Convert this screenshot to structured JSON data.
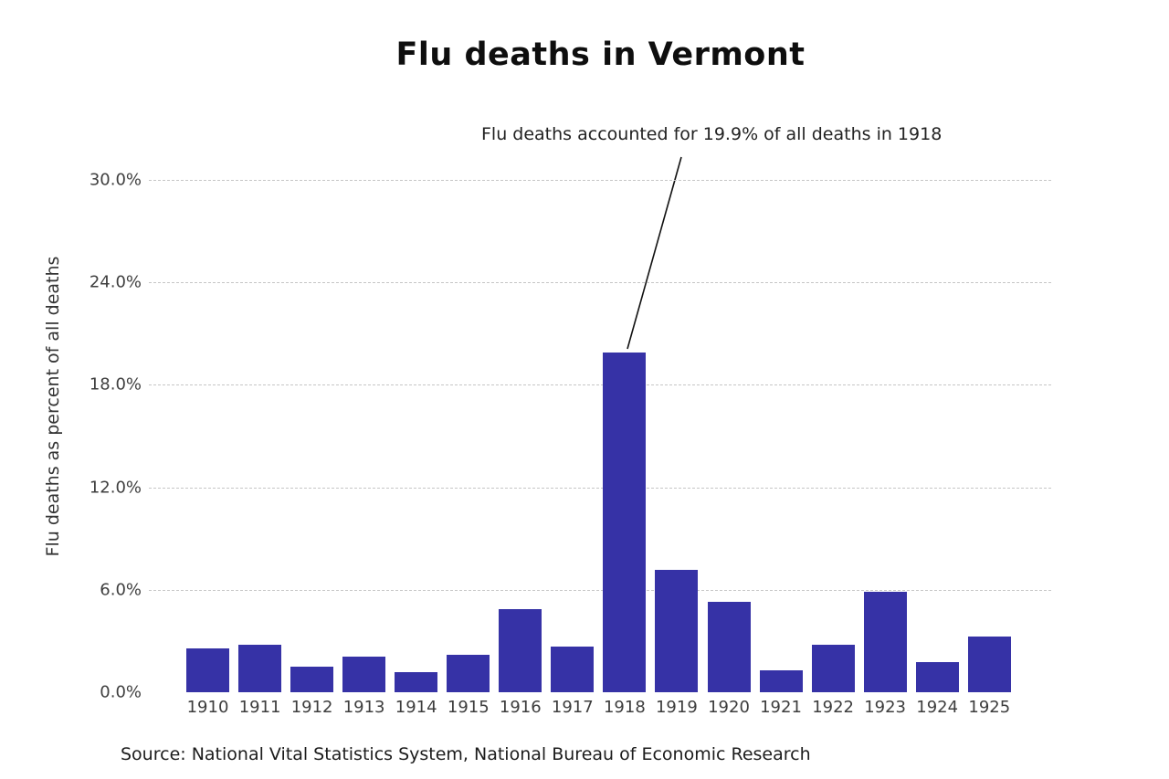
{
  "chart_data": {
    "type": "bar",
    "title": "Flu deaths in Vermont",
    "xlabel": "",
    "ylabel": "Flu deaths as percent of all deaths",
    "categories": [
      "1910",
      "1911",
      "1912",
      "1913",
      "1914",
      "1915",
      "1916",
      "1917",
      "1918",
      "1919",
      "1920",
      "1921",
      "1922",
      "1923",
      "1924",
      "1925"
    ],
    "values": [
      2.6,
      2.8,
      1.5,
      2.1,
      1.2,
      2.2,
      4.9,
      2.7,
      19.9,
      7.2,
      5.3,
      1.3,
      2.8,
      5.9,
      1.8,
      3.3
    ],
    "ylim": [
      0,
      31.5
    ],
    "yticks": {
      "labels": [
        "0.0%",
        "6.0%",
        "12.0%",
        "18.0%",
        "24.0%",
        "30.0%"
      ],
      "values": [
        0,
        6,
        12,
        18,
        24,
        30
      ]
    },
    "grid": "horizontal-dashed",
    "legend": "none",
    "annotation": {
      "text": "Flu deaths accounted for 19.9% of all deaths in 1918",
      "target_category": "1918",
      "target_value": 19.9
    },
    "source_note": "Source: National Vital Statistics System, National Bureau of Economic Research",
    "colors": {
      "bar": "#3632a6",
      "gridline": "#c6c6c6",
      "tick_label": "#3f3f3f",
      "title": "#0e0e0e",
      "annotation_line": "#111111",
      "background": "#ffffff"
    }
  }
}
